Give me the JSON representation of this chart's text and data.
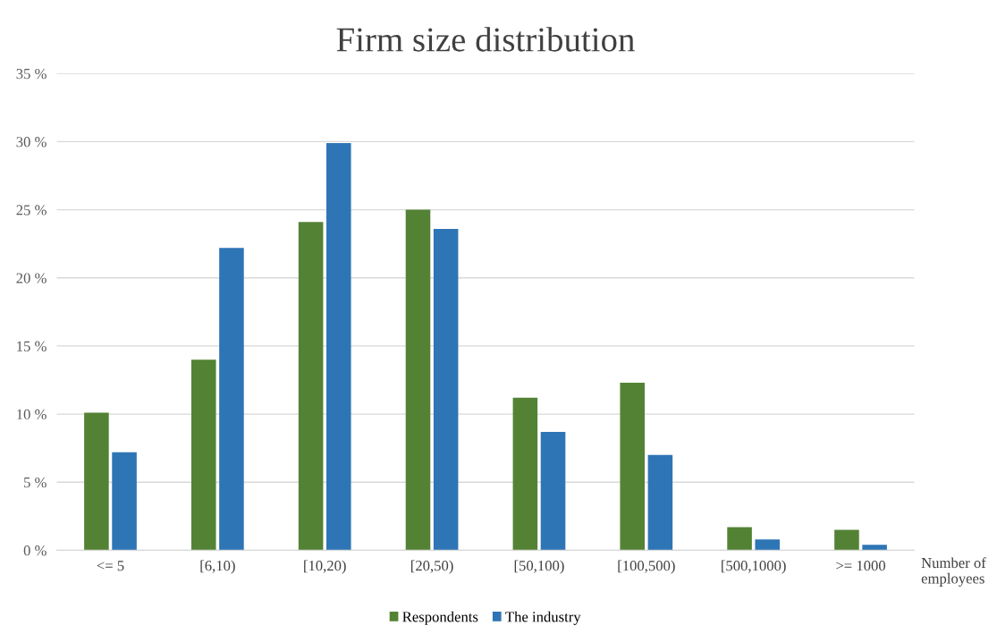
{
  "chart_data": {
    "type": "bar",
    "title": "Firm size distribution",
    "xlabel": "Number of employees",
    "categories": [
      "<= 5",
      "[6,10)",
      "[10,20)",
      "[20,50)",
      "[50,100)",
      "[100,500)",
      "[500,1000)",
      ">= 1000"
    ],
    "series": [
      {
        "name": "Respondents",
        "color": "#548235",
        "values": [
          10.1,
          14.0,
          24.1,
          25.0,
          11.2,
          12.3,
          1.7,
          1.5
        ]
      },
      {
        "name": "The industry",
        "color": "#2e75b6",
        "values": [
          7.2,
          22.2,
          29.9,
          23.6,
          8.7,
          7.0,
          0.8,
          0.4
        ]
      }
    ],
    "ylim": [
      0,
      35
    ],
    "yticks": [
      {
        "value": 0,
        "label": "0 %"
      },
      {
        "value": 5,
        "label": "5 %"
      },
      {
        "value": 10,
        "label": "10 %"
      },
      {
        "value": 15,
        "label": "15 %"
      },
      {
        "value": 20,
        "label": "20 %"
      },
      {
        "value": 25,
        "label": "25 %"
      },
      {
        "value": 30,
        "label": "30 %"
      },
      {
        "value": 35,
        "label": "35 %"
      }
    ],
    "grid": "y",
    "legend": "bottom"
  }
}
